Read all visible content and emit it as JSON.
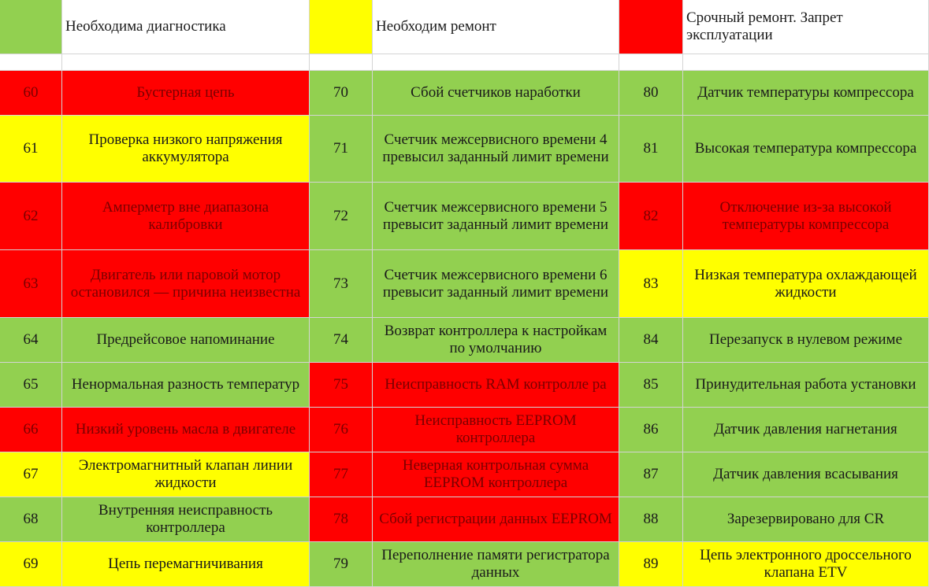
{
  "legend": [
    {
      "color": "green",
      "label": "Необходима диагностика"
    },
    {
      "color": "yellow",
      "label": "Необходим ремонт"
    },
    {
      "color": "red",
      "label": "Срочный ремонт. Запрет эксплуатации"
    }
  ],
  "columns": [
    {
      "rows": [
        {
          "code": "60",
          "desc": "Бустерная цепь",
          "color": "red"
        },
        {
          "code": "61",
          "desc": "Проверка низкого напряжения аккумулятора",
          "color": "yellow"
        },
        {
          "code": "62",
          "desc": "Амперметр вне диапазона калибровки",
          "color": "red"
        },
        {
          "code": "63",
          "desc": "Двигатель или паровой мотор остановился — причина неизвестна",
          "color": "red"
        },
        {
          "code": "64",
          "desc": "Предрейсовое напоминание",
          "color": "green"
        },
        {
          "code": "65",
          "desc": "Ненормальная разность температур",
          "color": "green"
        },
        {
          "code": "66",
          "desc": "Низкий уровень масла в двигателе",
          "color": "red"
        },
        {
          "code": "67",
          "desc": "Электромагнитный клапан линии жидкости",
          "color": "yellow"
        },
        {
          "code": "68",
          "desc": "Внутренняя неисправность контроллера",
          "color": "green"
        },
        {
          "code": "69",
          "desc": "Цепь перемагничивания",
          "color": "yellow"
        }
      ]
    },
    {
      "rows": [
        {
          "code": "70",
          "desc": "Сбой счетчиков наработки",
          "color": "green"
        },
        {
          "code": "71",
          "desc": "Счетчик межсервисного времени 4 превысил заданный лимит времени",
          "color": "green"
        },
        {
          "code": "72",
          "desc": "Счетчик межсервисного времени 5 превысит заданный лимит времени",
          "color": "green"
        },
        {
          "code": "73",
          "desc": "Счетчик межсервисного времени 6 превысит заданный лимит времени",
          "color": "green"
        },
        {
          "code": "74",
          "desc": "Возврат контроллера к настройкам по умолчанию",
          "color": "green"
        },
        {
          "code": "75",
          "desc": "Неисправность RAM контролле ра",
          "color": "red"
        },
        {
          "code": "76",
          "desc": "Неисправность EEPROM контроллера",
          "color": "red"
        },
        {
          "code": "77",
          "desc": "Неверная контрольная сумма EEPROM контроллера",
          "color": "red"
        },
        {
          "code": "78",
          "desc": "Сбой регистрации данных EEPROM",
          "color": "red"
        },
        {
          "code": "79",
          "desc": "Переполнение памяти регистратора данных",
          "color": "green"
        }
      ]
    },
    {
      "rows": [
        {
          "code": "80",
          "desc": "Датчик температуры компрессора",
          "color": "green"
        },
        {
          "code": "81",
          "desc": "Высокая температура компрессора",
          "color": "green"
        },
        {
          "code": "82",
          "desc": "Отключение из-за высокой температуры компрессора",
          "color": "red"
        },
        {
          "code": "83",
          "desc": "Низкая температура охлаждающей жидкости",
          "color": "yellow"
        },
        {
          "code": "84",
          "desc": "Перезапуск в нулевом режиме",
          "color": "green"
        },
        {
          "code": "85",
          "desc": "Принудительная работа установки",
          "color": "green"
        },
        {
          "code": "86",
          "desc": "Датчик давления нагнетания",
          "color": "green"
        },
        {
          "code": "87",
          "desc": "Датчик давления всасывания",
          "color": "green"
        },
        {
          "code": "88",
          "desc": "Зарезервировано для CR",
          "color": "green"
        },
        {
          "code": "89",
          "desc": "Цепь электронного дроссельного клапана ETV",
          "color": "yellow"
        }
      ]
    }
  ]
}
